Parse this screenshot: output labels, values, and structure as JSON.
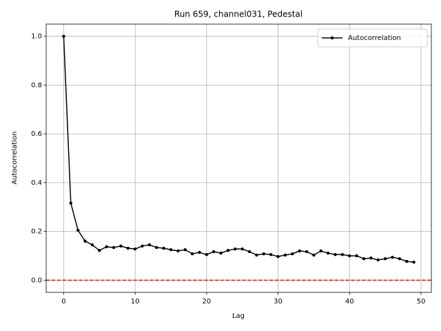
{
  "chart_data": {
    "type": "line",
    "title": "Run 659, channel031, Pedestal",
    "x_label": "Lag",
    "y_label": "Autocorrelation",
    "x": [
      0,
      1,
      2,
      3,
      4,
      5,
      6,
      7,
      8,
      9,
      10,
      11,
      12,
      13,
      14,
      15,
      16,
      17,
      18,
      19,
      20,
      21,
      22,
      23,
      24,
      25,
      26,
      27,
      28,
      29,
      30,
      31,
      32,
      33,
      34,
      35,
      36,
      37,
      38,
      39,
      40,
      41,
      42,
      43,
      44,
      45,
      46,
      47,
      48,
      49
    ],
    "series": [
      {
        "name": "Autocorrelation",
        "color": "#000000",
        "values": [
          1.0,
          0.316,
          0.205,
          0.16,
          0.145,
          0.122,
          0.137,
          0.134,
          0.14,
          0.131,
          0.128,
          0.14,
          0.145,
          0.134,
          0.131,
          0.125,
          0.12,
          0.125,
          0.108,
          0.114,
          0.105,
          0.117,
          0.111,
          0.122,
          0.128,
          0.128,
          0.117,
          0.103,
          0.108,
          0.105,
          0.097,
          0.103,
          0.108,
          0.12,
          0.117,
          0.103,
          0.12,
          0.111,
          0.105,
          0.105,
          0.1,
          0.1,
          0.088,
          0.091,
          0.083,
          0.088,
          0.094,
          0.088,
          0.077,
          0.074
        ]
      }
    ],
    "hline": {
      "value": 0,
      "color": "#ff0000"
    },
    "xlim": [
      -2.45,
      51.45
    ],
    "ylim": [
      -0.05,
      1.05
    ],
    "xticks": [
      0,
      10,
      20,
      30,
      40,
      50
    ],
    "yticks": [
      {
        "value": 0,
        "label": "0.0"
      },
      {
        "value": 0.2,
        "label": "0.2"
      },
      {
        "value": 0.4,
        "label": "0.4"
      },
      {
        "value": 0.6,
        "label": "0.6"
      },
      {
        "value": 0.8,
        "label": "0.8"
      },
      {
        "value": 1.0,
        "label": "1.0"
      }
    ],
    "grid": true,
    "legend": "upper-right"
  }
}
